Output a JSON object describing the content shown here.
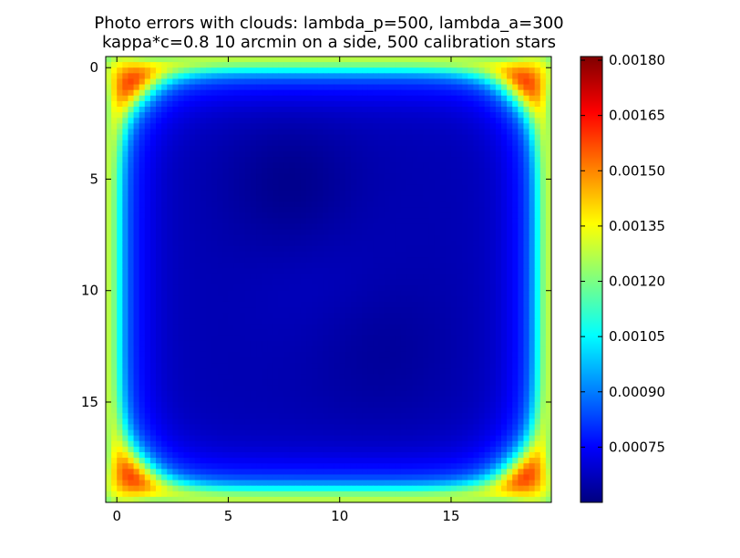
{
  "chart_data": {
    "type": "heatmap",
    "title": "Photo errors with clouds:  lambda_p=500, lambda_a=300",
    "subtitle": "kappa*c=0.8 10 arcmin on a side, 500 calibration stars",
    "xlabel": "",
    "ylabel": "",
    "grid": false,
    "colormap": "jet",
    "image_extent": {
      "x": [
        -0.5,
        19.5
      ],
      "y": [
        19.5,
        -0.5
      ]
    },
    "x_ticks": [
      0,
      5,
      10,
      15
    ],
    "x_tick_labels": [
      "0",
      "5",
      "10",
      "15"
    ],
    "y_ticks": [
      0,
      5,
      10,
      15
    ],
    "y_tick_labels": [
      "0",
      "5",
      "10",
      "15"
    ],
    "colorbar": {
      "vmin": 0.0006,
      "vmax": 0.00181,
      "ticks": [
        0.00075,
        0.0009,
        0.00105,
        0.0012,
        0.00135,
        0.0015,
        0.00165,
        0.0018
      ],
      "tick_labels": [
        "0.00075",
        "0.00090",
        "0.00105",
        "0.00120",
        "0.00135",
        "0.00150",
        "0.00165",
        "0.00180"
      ],
      "colors": [
        "#00007f",
        "#0000ff",
        "#007fff",
        "#00ffff",
        "#7fff7f",
        "#ffff00",
        "#ff7f00",
        "#ff0000",
        "#7f0000"
      ]
    }
  }
}
